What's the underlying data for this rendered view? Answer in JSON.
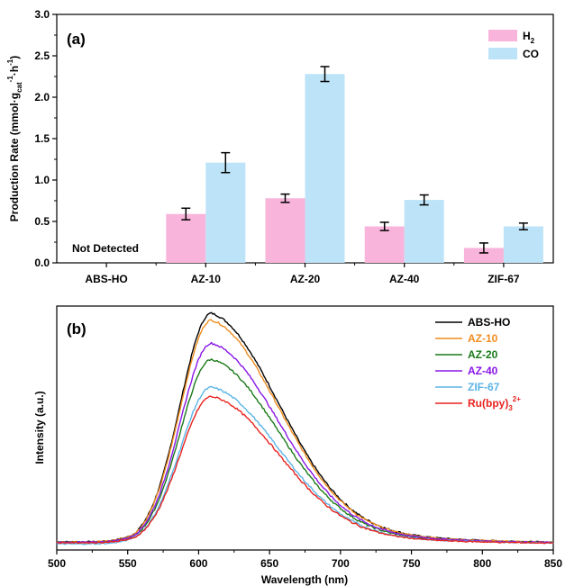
{
  "chart_data": [
    {
      "type": "bar",
      "panel_label": "(a)",
      "categories": [
        "ABS-HO",
        "AZ-10",
        "AZ-20",
        "AZ-40",
        "ZIF-67"
      ],
      "ylabel_text": "Production Rate (mmol·g",
      "ylabel_sub": "cat",
      "ylabel_sup": "-1",
      "ylabel_unit": "·h",
      "ylabel_sup2": "-1",
      "ylabel_close": ")",
      "ylim": [
        0,
        3.0
      ],
      "yticks": [
        "0.0",
        "0.5",
        "1.0",
        "1.5",
        "2.0",
        "2.5",
        "3.0"
      ],
      "series": [
        {
          "name": "H",
          "name_sub": "2",
          "color": "#f9b4db",
          "values": [
            null,
            0.59,
            0.78,
            0.44,
            0.18
          ],
          "errors": [
            null,
            0.07,
            0.05,
            0.05,
            0.06
          ]
        },
        {
          "name": "CO",
          "color": "#bde3f8",
          "values": [
            null,
            1.21,
            2.28,
            0.76,
            0.44
          ],
          "errors": [
            null,
            0.12,
            0.09,
            0.06,
            0.04
          ]
        }
      ],
      "annotation": "Not Detected",
      "legend_position": "top-right"
    },
    {
      "type": "line",
      "panel_label": "(b)",
      "xlabel": "Wavelength (nm)",
      "ylabel": "Intensity (a.u.)",
      "xlim": [
        500,
        850
      ],
      "xticks": [
        "500",
        "550",
        "600",
        "650",
        "700",
        "750",
        "800",
        "850"
      ],
      "legend_position": "top-right",
      "series": [
        {
          "name": "ABS-HO",
          "color": "#000000",
          "peak": 1.0,
          "tail": 0.012
        },
        {
          "name": "AZ-10",
          "color": "#f08c1e",
          "peak": 0.97,
          "tail": 0.012
        },
        {
          "name": "AZ-20",
          "color": "#1a7a1a",
          "peak": 0.8,
          "tail": 0.01
        },
        {
          "name": "AZ-40",
          "color": "#8a16e6",
          "peak": 0.87,
          "tail": 0.01
        },
        {
          "name": "ZIF-67",
          "color": "#5bb4e6",
          "peak": 0.68,
          "tail": 0.003
        },
        {
          "name": "Ru(bpy)",
          "name_sub": "3",
          "name_sup": "2+",
          "color": "#e8231e",
          "peak": 0.64,
          "tail": 0.008
        }
      ],
      "peak_wavelength": 609
    }
  ]
}
